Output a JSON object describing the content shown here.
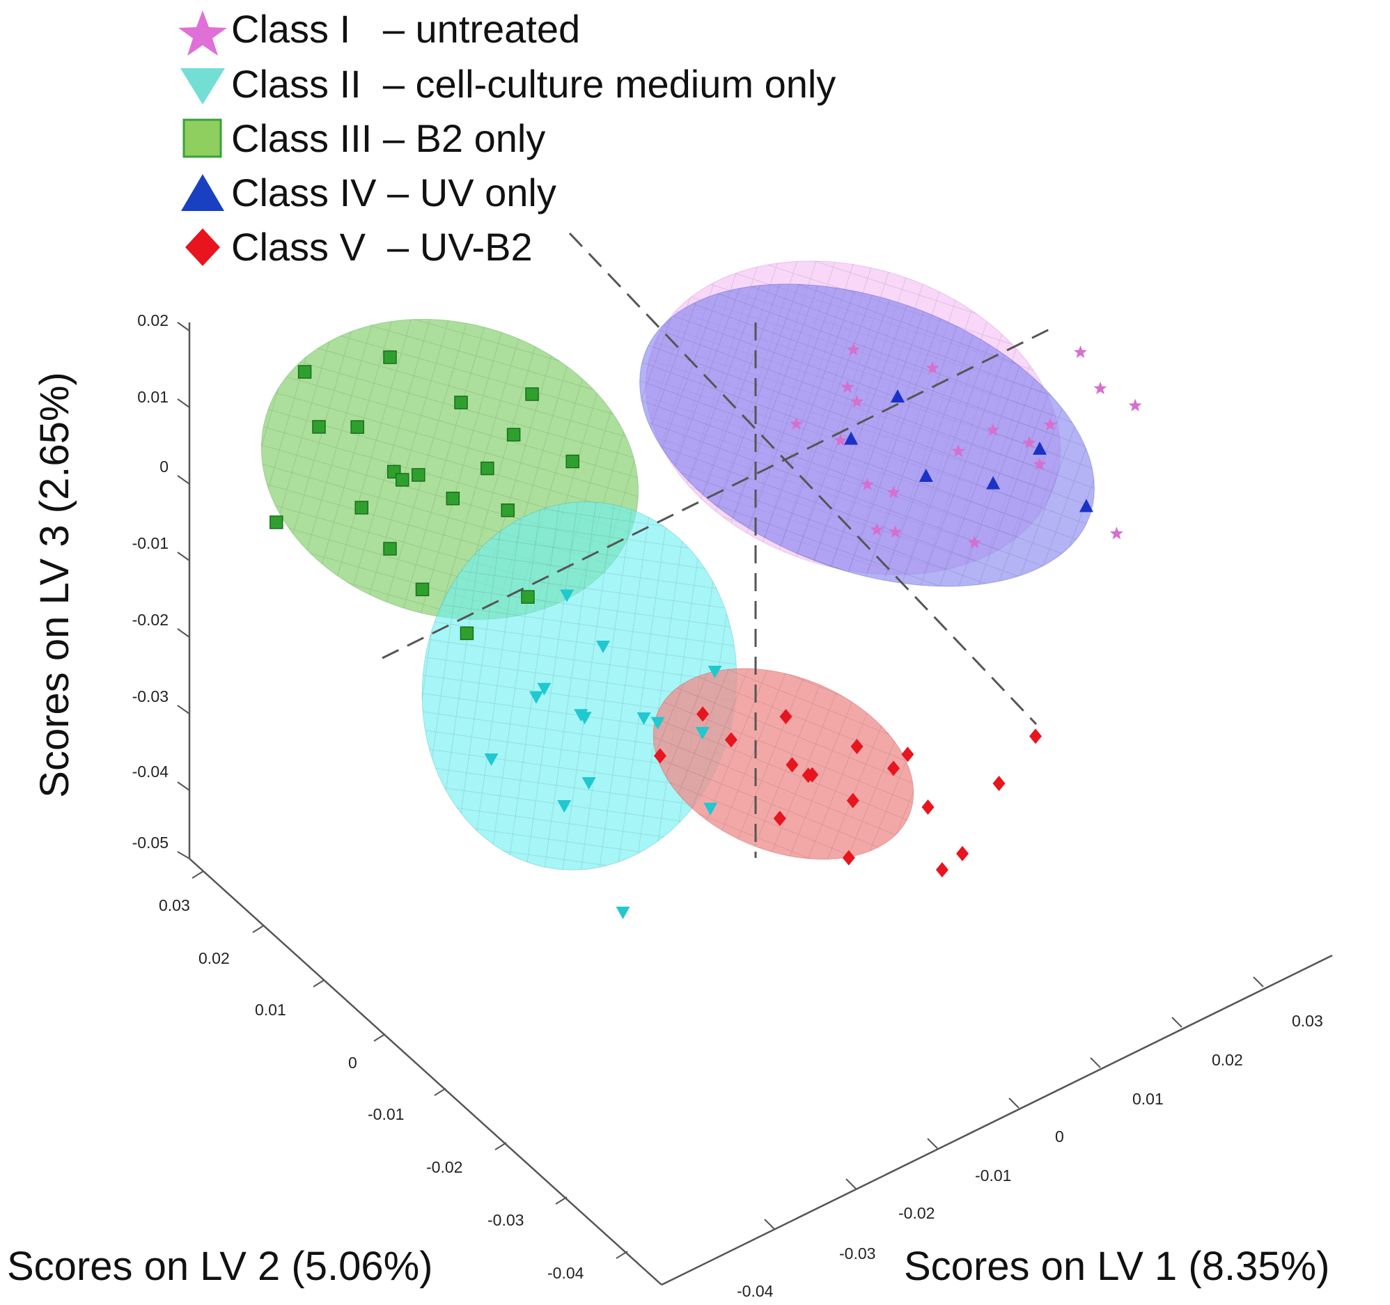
{
  "chart_data": {
    "type": "scatter",
    "title": "",
    "projection": "3d",
    "axes": {
      "x": {
        "label": "Scores on LV 1 (8.35%)",
        "ticks": [
          "-0.04",
          "-0.03",
          "-0.02",
          "-0.01",
          "0",
          "0.01",
          "0.02",
          "0.03"
        ],
        "range": [
          -0.04,
          0.03
        ]
      },
      "y": {
        "label": "Scores on LV 2 (5.06%)",
        "ticks": [
          "0.03",
          "0.02",
          "0.01",
          "0",
          "-0.01",
          "-0.02",
          "-0.03",
          "-0.04"
        ],
        "range": [
          -0.04,
          0.03
        ]
      },
      "z": {
        "label": "Scores on LV 3 (2.65%)",
        "ticks": [
          "0.02",
          "0.01",
          "0",
          "-0.01",
          "-0.02",
          "-0.03",
          "-0.04",
          "-0.05"
        ],
        "range": [
          -0.05,
          0.02
        ]
      }
    },
    "legend": {
      "placement": "top-left"
    },
    "series": [
      {
        "name": "Class I",
        "label": "Class I   – untreated",
        "marker": "star",
        "color": "#d66fce",
        "ellipse_color": "#f0a6ef",
        "points": [
          [
            0.02,
            -0.03,
            0.02
          ],
          [
            0.025,
            -0.02,
            0.015
          ],
          [
            0.005,
            -0.01,
            0.012
          ],
          [
            0.01,
            -0.02,
            0.01
          ],
          [
            0.015,
            -0.025,
            0.012
          ],
          [
            0.012,
            0.0,
            0.008
          ],
          [
            0.018,
            -0.015,
            0.005
          ],
          [
            0.0,
            -0.02,
            0.005
          ],
          [
            0.008,
            -0.012,
            0.0
          ],
          [
            0.022,
            -0.03,
            0.0
          ],
          [
            0.01,
            -0.005,
            -0.005
          ],
          [
            0.015,
            0.005,
            -0.002
          ],
          [
            0.025,
            -0.015,
            0.002
          ],
          [
            0.005,
            0.0,
            0.002
          ],
          [
            0.012,
            -0.02,
            -0.003
          ],
          [
            0.003,
            -0.01,
            0.008
          ],
          [
            0.018,
            -0.005,
            0.006
          ],
          [
            0.02,
            -0.02,
            0.003
          ],
          [
            0.006,
            -0.015,
            -0.002
          ],
          [
            0.028,
            -0.025,
            0.01
          ]
        ]
      },
      {
        "name": "Class II",
        "label": "Class II  – cell-culture medium only",
        "marker": "triangle-down",
        "color": "#20c8d0",
        "ellipse_color": "#6ff0f2",
        "points": [
          [
            -0.015,
            0.005,
            -0.02
          ],
          [
            -0.02,
            0.008,
            -0.025
          ],
          [
            -0.012,
            0.0,
            -0.028
          ],
          [
            -0.018,
            0.012,
            -0.03
          ],
          [
            -0.01,
            0.005,
            -0.032
          ],
          [
            -0.022,
            0.002,
            -0.035
          ],
          [
            -0.014,
            0.01,
            -0.033
          ],
          [
            -0.008,
            -0.002,
            -0.03
          ],
          [
            -0.016,
            0.006,
            -0.038
          ],
          [
            -0.025,
            0.01,
            -0.033
          ],
          [
            -0.02,
            -0.005,
            -0.045
          ],
          [
            -0.005,
            0.0,
            -0.025
          ],
          [
            -0.012,
            0.015,
            -0.022
          ],
          [
            -0.018,
            0.004,
            -0.027
          ],
          [
            -0.01,
            -0.006,
            -0.036
          ]
        ]
      },
      {
        "name": "Class III",
        "label": "Class III – B2 only",
        "marker": "square",
        "color": "#2ea02e",
        "ellipse_color": "#8fd47a",
        "points": [
          [
            -0.03,
            0.02,
            0.015
          ],
          [
            -0.025,
            0.015,
            0.01
          ],
          [
            -0.035,
            0.025,
            0.005
          ],
          [
            -0.02,
            0.01,
            0.012
          ],
          [
            -0.028,
            0.018,
            0.0
          ],
          [
            -0.032,
            0.022,
            -0.005
          ],
          [
            -0.024,
            0.012,
            0.003
          ],
          [
            -0.038,
            0.028,
            -0.008
          ],
          [
            -0.022,
            0.008,
            -0.012
          ],
          [
            -0.03,
            0.02,
            -0.01
          ],
          [
            -0.026,
            0.015,
            -0.002
          ],
          [
            -0.034,
            0.02,
            0.008
          ],
          [
            -0.018,
            0.006,
            0.005
          ],
          [
            -0.028,
            0.01,
            -0.015
          ],
          [
            -0.036,
            0.026,
            0.012
          ],
          [
            -0.02,
            0.014,
            -0.006
          ],
          [
            -0.031,
            0.018,
            0.002
          ],
          [
            -0.027,
            0.022,
            -0.004
          ],
          [
            -0.023,
            0.009,
            0.009
          ],
          [
            -0.029,
            0.016,
            -0.013
          ]
        ]
      },
      {
        "name": "Class IV",
        "label": "Class IV – UV only",
        "marker": "triangle-up",
        "color": "#1a32c8",
        "ellipse_color": "#8080f0",
        "points": [
          [
            0.01,
            -0.01,
            0.01
          ],
          [
            0.02,
            -0.02,
            0.005
          ],
          [
            0.012,
            -0.012,
            0.0
          ],
          [
            0.018,
            -0.015,
            -0.002
          ],
          [
            0.022,
            -0.025,
            0.0
          ],
          [
            0.008,
            -0.005,
            0.002
          ]
        ]
      },
      {
        "name": "Class V",
        "label": "Class V  – UV-B2",
        "marker": "diamond",
        "color": "#e8141e",
        "ellipse_color": "#f09090",
        "points": [
          [
            0.0,
            -0.005,
            -0.03
          ],
          [
            0.005,
            -0.01,
            -0.033
          ],
          [
            -0.003,
            0.0,
            -0.035
          ],
          [
            0.008,
            -0.012,
            -0.036
          ],
          [
            0.002,
            -0.006,
            -0.038
          ],
          [
            0.01,
            -0.015,
            -0.04
          ],
          [
            -0.005,
            0.002,
            -0.032
          ],
          [
            0.006,
            -0.008,
            -0.042
          ],
          [
            0.012,
            -0.018,
            -0.045
          ],
          [
            0.0,
            -0.004,
            -0.044
          ],
          [
            0.015,
            -0.02,
            -0.036
          ],
          [
            0.004,
            -0.01,
            -0.047
          ],
          [
            -0.008,
            0.005,
            -0.038
          ],
          [
            0.009,
            -0.013,
            -0.034
          ],
          [
            0.011,
            -0.016,
            -0.048
          ],
          [
            0.003,
            -0.002,
            -0.04
          ],
          [
            0.018,
            -0.022,
            -0.03
          ],
          [
            0.001,
            -0.008,
            -0.036
          ]
        ]
      }
    ]
  }
}
